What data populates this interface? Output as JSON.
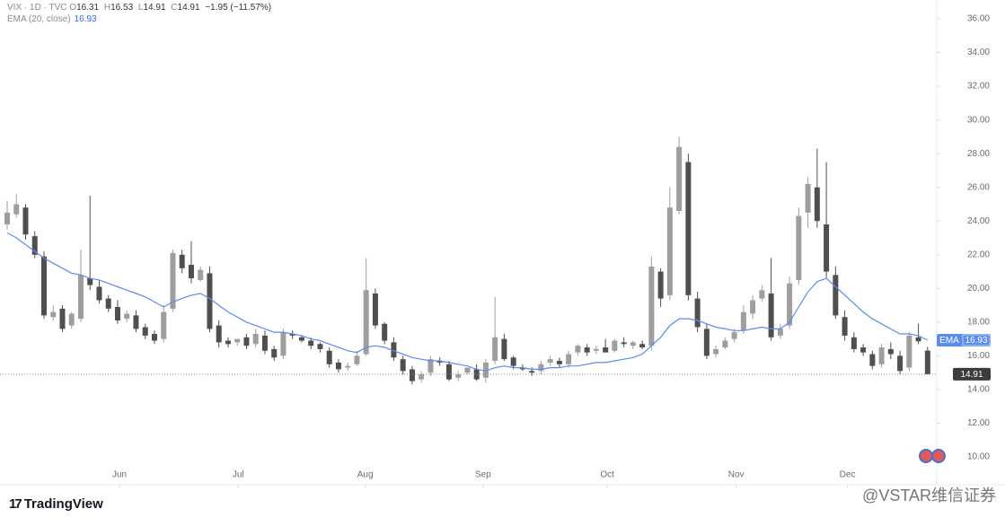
{
  "chart_data": {
    "type": "candlestick",
    "title": "VIX · 1D · TVC",
    "ohlc_labels": [
      "O",
      "H",
      "L",
      "C"
    ],
    "change": "−1.95 (−11.57%)",
    "ema_tag": "EMA",
    "up_color": "#9e9e9e",
    "down_color": "#4f4f4f",
    "last_price_line": true,
    "open": [
      23.8,
      24.4,
      24.8,
      23.1,
      21.9,
      18.3,
      18.8,
      17.8,
      18.2,
      20.6,
      20.1,
      19.4,
      18.9,
      18.2,
      18.4,
      17.7,
      17.3,
      17,
      18.8,
      22,
      21.4,
      20.5,
      20.9,
      17.8,
      16.9,
      16.8,
      17.1,
      16.7,
      17.2,
      16.4,
      16,
      17.3,
      17.1,
      16.9,
      16.7,
      16.3,
      15.6,
      15.3,
      15.5,
      16.1,
      19.7,
      17.9,
      16.8,
      15.8,
      15.2,
      14.6,
      15,
      15.7,
      15.5,
      14.7,
      15,
      15.2,
      14.7,
      15.7,
      17,
      15.9,
      15.3,
      15.1,
      15.1,
      15.6,
      15.7,
      15.5,
      16.2,
      16.5,
      16.3,
      16.5,
      16.3,
      16.8,
      16.6,
      16.7,
      16.6,
      21,
      19.6,
      24.6,
      27.5,
      19.4,
      17.6,
      16.1,
      16.5,
      17,
      17.5,
      18.5,
      19.4,
      19.7,
      17.2,
      17.8,
      20.5,
      24.5,
      26,
      23.8,
      20.8,
      18.3,
      17.1,
      16.5,
      16.1,
      15.5,
      16.4,
      16,
      15.3,
      17.1,
      16.31
    ],
    "high": [
      25.2,
      25.6,
      25,
      23.4,
      22.2,
      19,
      19,
      18.6,
      22.3,
      25.5,
      20.5,
      19.6,
      19.3,
      18.7,
      18.7,
      17.9,
      17.5,
      19,
      22.3,
      22.3,
      22.8,
      21.3,
      21.3,
      18.1,
      17.1,
      17,
      17.3,
      17.6,
      17.5,
      16.6,
      17.6,
      17.5,
      17.2,
      17.1,
      16.8,
      16.5,
      15.8,
      15.6,
      16.3,
      21.8,
      20,
      18,
      17.1,
      16,
      15.4,
      15.1,
      16,
      15.9,
      15.7,
      15.1,
      15.3,
      15.5,
      15.8,
      19.5,
      17.3,
      16,
      15.5,
      15.3,
      15.7,
      16,
      15.9,
      16.3,
      16.7,
      16.7,
      16.6,
      17,
      17,
      17.1,
      16.9,
      16.9,
      21.9,
      21.2,
      26,
      29,
      28,
      19.8,
      17.9,
      16.6,
      17.1,
      17.6,
      19,
      19.6,
      20.2,
      21.8,
      17.9,
      20.7,
      24.8,
      26.6,
      28.3,
      27.5,
      21.3,
      18.7,
      17.4,
      16.7,
      16.3,
      16.7,
      16.8,
      16.3,
      17.4,
      17.9,
      16.53
    ],
    "low": [
      23.5,
      24.2,
      22.9,
      21.8,
      18.2,
      18.1,
      17.4,
      17.6,
      18,
      19.9,
      19.1,
      18.6,
      17.9,
      18,
      17.4,
      17,
      16.7,
      16.8,
      18.6,
      20.9,
      20.3,
      20.4,
      17.4,
      16.5,
      16.5,
      16.6,
      16.4,
      16.5,
      16.1,
      15.7,
      15.8,
      17,
      16.8,
      16.4,
      16.2,
      15.3,
      15,
      15.1,
      15.4,
      16,
      17.6,
      16.7,
      15.7,
      14.9,
      14.3,
      14.4,
      14.8,
      15.4,
      14.5,
      14.5,
      14.9,
      14.5,
      14.4,
      15.5,
      15.7,
      15.2,
      15.1,
      14.8,
      14.9,
      15.4,
      15.3,
      15.3,
      16,
      16,
      16.1,
      16.2,
      16.2,
      16.5,
      16.4,
      16.4,
      16.3,
      18.9,
      19.3,
      24.4,
      19.3,
      17.4,
      15.8,
      15.9,
      16.4,
      16.8,
      17.3,
      18.2,
      19.2,
      16.9,
      17,
      17.6,
      20.2,
      23.6,
      23.6,
      20.6,
      18.2,
      16.9,
      16.2,
      16,
      15.2,
      15.3,
      15.8,
      14.9,
      15.1,
      16.7,
      14.91
    ],
    "close": [
      24.5,
      25,
      23.2,
      22,
      18.4,
      18.6,
      17.6,
      18.5,
      20.8,
      20.2,
      19.3,
      18.8,
      18.1,
      18.5,
      17.6,
      17.2,
      16.9,
      18.6,
      22.1,
      21.2,
      20.6,
      21.1,
      17.6,
      16.8,
      16.7,
      17,
      16.6,
      17.3,
      16.3,
      15.9,
      17.4,
      17.2,
      16.9,
      16.6,
      16.4,
      15.5,
      15.2,
      15.4,
      16,
      19.9,
      17.8,
      16.9,
      15.9,
      15.1,
      14.5,
      14.9,
      15.8,
      15.6,
      14.6,
      14.9,
      15.3,
      14.6,
      15.6,
      17.1,
      15.8,
      15.4,
      15.2,
      15,
      15.5,
      15.8,
      15.5,
      16.1,
      16.6,
      16.2,
      16.4,
      16.2,
      16.9,
      16.7,
      16.8,
      16.5,
      21.3,
      19.4,
      24.8,
      28.4,
      19.6,
      17.7,
      16,
      16.4,
      16.9,
      17.4,
      18.6,
      19.3,
      19.9,
      17.1,
      17.6,
      20.3,
      24.3,
      26.2,
      24,
      21,
      18.4,
      17.2,
      16.4,
      16.2,
      15.4,
      16.5,
      16.1,
      15.1,
      17.2,
      16.86,
      14.91
    ],
    "series": [
      {
        "name": "EMA (20, close)",
        "color": "#5b8def",
        "values": [
          23.3,
          23.0,
          22.6,
          22.2,
          21.8,
          21.5,
          21.2,
          20.9,
          20.8,
          20.6,
          20.5,
          20.3,
          20.1,
          19.9,
          19.7,
          19.5,
          19.2,
          18.9,
          19.2,
          19.4,
          19.6,
          19.7,
          19.4,
          19.0,
          18.6,
          18.3,
          18.0,
          17.8,
          17.6,
          17.4,
          17.4,
          17.3,
          17.2,
          17.0,
          16.9,
          16.7,
          16.5,
          16.3,
          16.2,
          16.5,
          16.6,
          16.5,
          16.3,
          16.1,
          15.9,
          15.8,
          15.7,
          15.7,
          15.6,
          15.5,
          15.4,
          15.2,
          15.1,
          15.3,
          15.4,
          15.3,
          15.3,
          15.2,
          15.2,
          15.3,
          15.3,
          15.4,
          15.4,
          15.5,
          15.6,
          15.6,
          15.7,
          15.8,
          15.9,
          16.1,
          16.6,
          17.1,
          17.8,
          18.2,
          18.2,
          18.1,
          17.9,
          17.7,
          17.6,
          17.5,
          17.5,
          17.6,
          17.7,
          17.6,
          17.6,
          18.0,
          18.9,
          19.8,
          20.4,
          20.6,
          20.1,
          19.6,
          19.1,
          18.6,
          18.2,
          17.9,
          17.6,
          17.3,
          17.3,
          17.2,
          16.93
        ]
      }
    ],
    "xlim": [
      -0.78,
      100.7
    ],
    "xticks": [
      {
        "value": 12.2,
        "label": "Jun"
      },
      {
        "value": 25.1,
        "label": "Jul"
      },
      {
        "value": 38.9,
        "label": "Aug"
      },
      {
        "value": 51.7,
        "label": "Sep"
      },
      {
        "value": 65.2,
        "label": "Oct"
      },
      {
        "value": 79.2,
        "label": "Nov"
      },
      {
        "value": 91.3,
        "label": "Dec"
      }
    ],
    "ylim": [
      8.35,
      37.12
    ],
    "yticks": [
      {
        "value": 10,
        "label": "10.00"
      },
      {
        "value": 12,
        "label": "12.00"
      },
      {
        "value": 14,
        "label": "14.00"
      },
      {
        "value": 16,
        "label": "16.00"
      },
      {
        "value": 18,
        "label": "18.00"
      },
      {
        "value": 20,
        "label": "20.00"
      },
      {
        "value": 22,
        "label": "22.00"
      },
      {
        "value": 24,
        "label": "24.00"
      },
      {
        "value": 26,
        "label": "26.00"
      },
      {
        "value": 28,
        "label": "28.00"
      },
      {
        "value": 30,
        "label": "30.00"
      },
      {
        "value": 32,
        "label": "32.00"
      },
      {
        "value": 34,
        "label": "34.00"
      },
      {
        "value": 36,
        "label": "36.00"
      }
    ]
  },
  "brand": "TradingView",
  "watermark": "@VSTAR维信证券"
}
